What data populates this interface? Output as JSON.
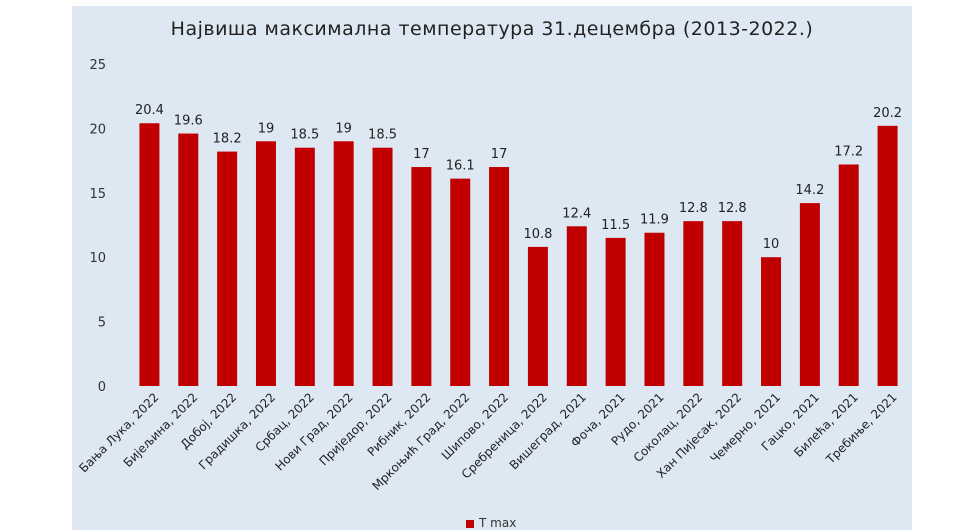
{
  "chart_data": {
    "type": "bar",
    "title": "Највиша максимална температура 31.децембра (2013-2022.)",
    "categories": [
      "Бања Лука, 2022",
      "Бијељина, 2022",
      "Добој, 2022",
      "Градишка, 2022",
      "Србац, 2022",
      "Нови Град, 2022",
      "Приједор, 2022",
      "Рибник, 2022",
      "Мркоњић Град, 2022",
      "Шипово, 2022",
      "Сребреница, 2022",
      "Вишеград, 2021",
      "Фоча, 2021",
      "Рудо, 2021",
      "Соколац, 2022",
      "Хан Пијесак, 2022",
      "Чемерно, 2021",
      "Гацко, 2021",
      "Билећа, 2021",
      "Требиње, 2021"
    ],
    "series": [
      {
        "name": "T max",
        "values": [
          20.4,
          19.6,
          18.2,
          19,
          18.5,
          19,
          18.5,
          17,
          16.1,
          17,
          10.8,
          12.4,
          11.5,
          11.9,
          12.8,
          12.8,
          10,
          14.2,
          17.2,
          20.2
        ]
      }
    ],
    "value_labels": [
      "20.4",
      "19.6",
      "18.2",
      "19",
      "18.5",
      "19",
      "18.5",
      "17",
      "16.1",
      "17",
      "10.8",
      "12.4",
      "11.5",
      "11.9",
      "12.8",
      "12.8",
      "10",
      "14.2",
      "17.2",
      "20.2"
    ],
    "y_ticks": [
      "0",
      "5",
      "10",
      "15",
      "20",
      "25"
    ],
    "ylim": [
      0,
      25
    ],
    "xlabel": "",
    "ylabel": "",
    "grid": false,
    "legend_position": "bottom",
    "colors": {
      "bar": "#c00000",
      "background": "#dde8f3"
    }
  }
}
